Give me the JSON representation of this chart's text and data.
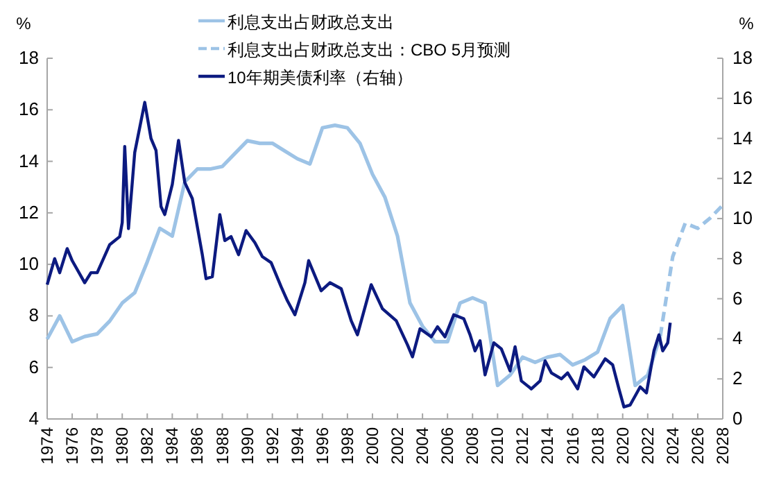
{
  "chart_data": {
    "type": "line",
    "ylabel": "%",
    "y2label": "%",
    "legend": "top",
    "marker": "none",
    "xlim": [
      1974,
      2028
    ],
    "xticks": [
      1974,
      1976,
      1978,
      1980,
      1982,
      1984,
      1986,
      1988,
      1990,
      1992,
      1994,
      1996,
      1998,
      2000,
      2002,
      2004,
      2006,
      2008,
      2010,
      2012,
      2014,
      2016,
      2018,
      2020,
      2022,
      2024,
      2026,
      2028
    ],
    "ylim": [
      4,
      18
    ],
    "yticks": [
      4,
      6,
      8,
      10,
      12,
      14,
      16,
      18
    ],
    "y2lim": [
      0,
      18
    ],
    "y2ticks": [
      0,
      2,
      4,
      6,
      8,
      10,
      12,
      14,
      16,
      18
    ],
    "series": [
      {
        "name": "利息支出占财政总支出",
        "color": "#9dc3e6",
        "line_style": "solid",
        "x": [
          1974,
          1975,
          1976,
          1977,
          1978,
          1979,
          1980,
          1981,
          1982,
          1983,
          1984,
          1985,
          1986,
          1987,
          1988,
          1989,
          1990,
          1991,
          1992,
          1993,
          1994,
          1995,
          1996,
          1997,
          1998,
          1999,
          2000,
          2001,
          2002,
          2003,
          2004,
          2005,
          2006,
          2007,
          2008,
          2009,
          2010,
          2011,
          2012,
          2013,
          2014,
          2015,
          2016,
          2017,
          2018,
          2019,
          2020,
          2021,
          2022,
          2023
        ],
        "values": [
          7.1,
          8.0,
          7.0,
          7.2,
          7.3,
          7.8,
          8.5,
          8.9,
          10.1,
          11.4,
          11.1,
          13.2,
          13.7,
          13.7,
          13.8,
          14.3,
          14.8,
          14.7,
          14.7,
          14.4,
          14.1,
          13.9,
          15.3,
          15.4,
          15.3,
          14.7,
          13.5,
          12.6,
          11.1,
          8.5,
          7.6,
          7.0,
          7.0,
          8.5,
          8.7,
          8.5,
          5.3,
          5.7,
          6.4,
          6.2,
          6.4,
          6.5,
          6.1,
          6.3,
          6.6,
          7.9,
          8.4,
          5.3,
          5.7,
          7.2
        ]
      },
      {
        "name": "利息支出占财政总支出：CBO 5月预测",
        "color": "#9dc3e6",
        "line_style": "dashed",
        "x": [
          2023,
          2024,
          2025,
          2026,
          2027,
          2028
        ],
        "values": [
          7.2,
          10.3,
          11.6,
          11.4,
          11.8,
          12.3
        ]
      },
      {
        "name": "10年期美债利率（右轴）",
        "color": "#0c1a80",
        "line_style": "solid",
        "axis": "y2",
        "x": [
          1974.0,
          1974.6,
          1975.0,
          1975.6,
          1976.0,
          1977.0,
          1977.5,
          1978.0,
          1979.0,
          1979.8,
          1980.0,
          1980.2,
          1980.5,
          1981.0,
          1981.8,
          1982.3,
          1982.7,
          1983.1,
          1983.4,
          1984.0,
          1984.5,
          1985.0,
          1985.6,
          1986.4,
          1986.7,
          1987.2,
          1987.8,
          1988.2,
          1988.7,
          1989.3,
          1989.9,
          1990.6,
          1991.2,
          1991.9,
          1992.7,
          1993.2,
          1993.8,
          1994.6,
          1994.9,
          1995.9,
          1996.6,
          1997.5,
          1998.3,
          1998.8,
          1999.9,
          2000.8,
          2001.9,
          2002.8,
          2003.2,
          2003.8,
          2004.7,
          2005.2,
          2005.8,
          2006.5,
          2007.3,
          2007.8,
          2008.2,
          2008.6,
          2009.0,
          2009.7,
          2010.3,
          2011.0,
          2011.4,
          2011.9,
          2012.7,
          2013.4,
          2013.8,
          2014.3,
          2015.1,
          2015.6,
          2016.4,
          2016.9,
          2017.7,
          2018.6,
          2019.2,
          2019.7,
          2020.1,
          2020.6,
          2021.4,
          2021.9,
          2022.5,
          2022.9,
          2023.2,
          2023.6,
          2023.8
        ],
        "values": [
          6.7,
          8.0,
          7.3,
          8.5,
          7.9,
          6.8,
          7.3,
          7.3,
          8.7,
          9.1,
          9.8,
          13.6,
          9.5,
          13.3,
          15.8,
          14.0,
          13.4,
          10.6,
          10.2,
          11.7,
          13.9,
          11.8,
          11.0,
          8.2,
          7.0,
          7.1,
          10.2,
          8.9,
          9.1,
          8.2,
          9.4,
          8.8,
          8.1,
          7.8,
          6.6,
          5.9,
          5.2,
          6.8,
          7.9,
          6.4,
          6.8,
          6.5,
          4.9,
          4.2,
          6.7,
          5.5,
          4.9,
          3.7,
          3.1,
          4.5,
          4.1,
          4.6,
          4.1,
          5.2,
          5.0,
          4.2,
          3.4,
          3.9,
          2.2,
          3.8,
          3.5,
          2.4,
          3.6,
          1.9,
          1.5,
          1.9,
          2.9,
          2.3,
          2.0,
          2.3,
          1.5,
          2.6,
          2.1,
          3.0,
          2.7,
          1.5,
          0.6,
          0.7,
          1.6,
          1.3,
          3.4,
          4.2,
          3.4,
          3.8,
          4.8
        ]
      }
    ]
  }
}
